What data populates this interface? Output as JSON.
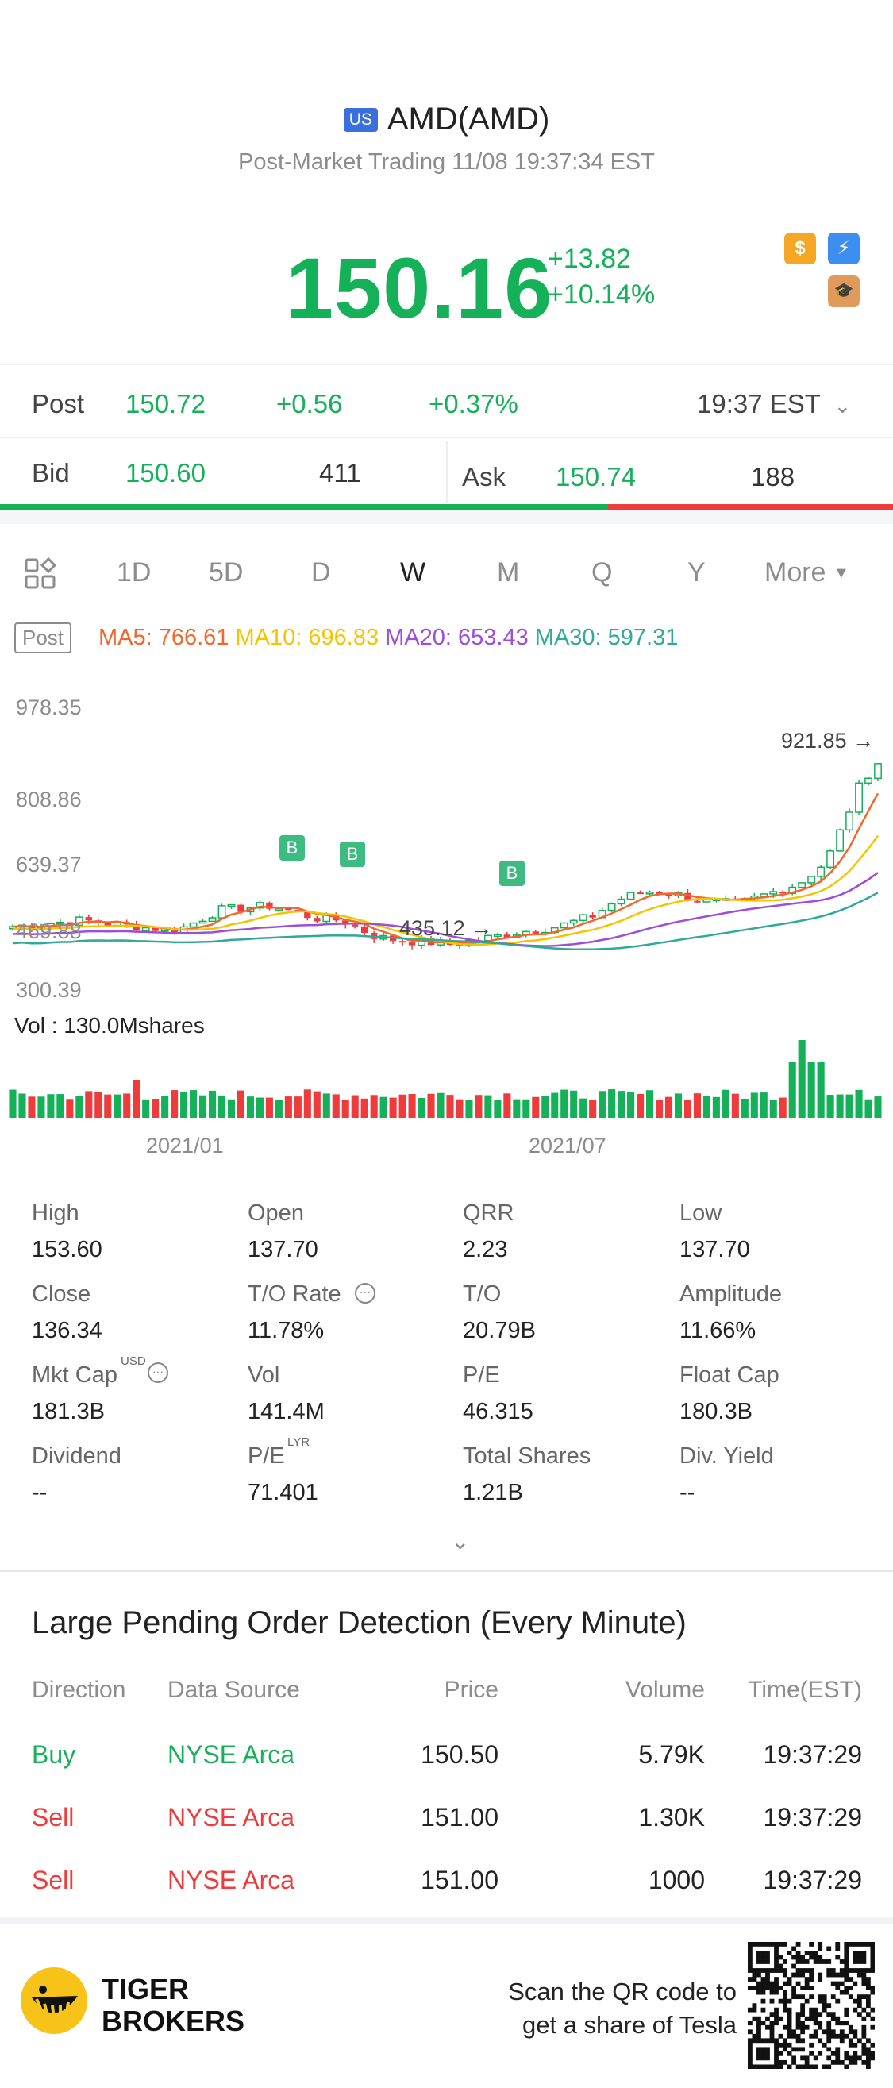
{
  "header": {
    "market_badge": "US",
    "title": "AMD(AMD)",
    "subtitle": "Post-Market Trading 11/08 19:37:34 EST",
    "price": "150.16",
    "change_abs": "+13.82",
    "change_pct": "+10.14%",
    "icons": [
      "dollar-icon",
      "lightning-icon",
      "graduation-cap-icon"
    ]
  },
  "post": {
    "label": "Post",
    "price": "150.72",
    "change_abs": "+0.56",
    "change_pct": "+0.37%",
    "time": "19:37 EST"
  },
  "quote": {
    "bid_label": "Bid",
    "bid_price": "150.60",
    "bid_size": "411",
    "ask_label": "Ask",
    "ask_price": "150.74",
    "ask_size": "188",
    "bid_share": 0.68
  },
  "periods": {
    "tabs": [
      "1D",
      "5D",
      "D",
      "W",
      "M",
      "Q",
      "Y"
    ],
    "more": "More",
    "selected": "W"
  },
  "indicators": {
    "post_tag": "Post",
    "ma5": "MA5: 766.61",
    "ma10": "MA10: 696.83",
    "ma20": "MA20: 653.43",
    "ma30": "MA30: 597.31",
    "colors": {
      "ma5": "#f0682e",
      "ma10": "#f5c400",
      "ma20": "#9c4ddb",
      "ma30": "#2eaa96"
    }
  },
  "chart": {
    "y_ticks": [
      "978.35",
      "808.86",
      "639.37",
      "469.88",
      "300.39"
    ],
    "high_marker": "921.85",
    "low_marker": "435.12",
    "buy_marker": "B",
    "vol_label": "Vol  : 130.0Mshares",
    "x_ticks": [
      "2021/01",
      "2021/07"
    ]
  },
  "chart_data": {
    "type": "candlestick",
    "x_ticks": [
      "2021/01",
      "2021/07"
    ],
    "ylim": [
      300.39,
      978.35
    ],
    "y_ticks": [
      978.35,
      808.86,
      639.37,
      469.88,
      300.39
    ],
    "annotations": [
      {
        "text": "921.85",
        "value": 921.85
      },
      {
        "text": "435.12",
        "value": 435.12
      }
    ],
    "volume_label": "Vol  : 130.0Mshares"
  },
  "stats": [
    {
      "label": "High",
      "value": "153.60"
    },
    {
      "label": "Open",
      "value": "137.70"
    },
    {
      "label": "QRR",
      "value": "2.23"
    },
    {
      "label": "Low",
      "value": "137.70"
    },
    {
      "label": "Close",
      "value": "136.34"
    },
    {
      "label": "T/O Rate",
      "value": "11.78%"
    },
    {
      "label": "T/O",
      "value": "20.79B"
    },
    {
      "label": "Amplitude",
      "value": "11.66%"
    },
    {
      "label": "Mkt Cap",
      "value": "181.3B",
      "sup": "USD"
    },
    {
      "label": "Vol",
      "value": "141.4M"
    },
    {
      "label": "P/E",
      "value": "46.315"
    },
    {
      "label": "Float Cap",
      "value": "180.3B"
    },
    {
      "label": "Dividend",
      "value": "--"
    },
    {
      "label": "P/E",
      "value": "71.401",
      "sup": "LYR"
    },
    {
      "label": "Total Shares",
      "value": "1.21B"
    },
    {
      "label": "Div. Yield",
      "value": "--"
    }
  ],
  "orders": {
    "title": "Large Pending Order Detection (Every Minute)",
    "columns": [
      "Direction",
      "Data Source",
      "Price",
      "Volume",
      "Time(EST)"
    ],
    "rows": [
      {
        "direction": "Buy",
        "source": "NYSE Arca",
        "price": "150.50",
        "volume": "5.79K",
        "time": "19:37:29"
      },
      {
        "direction": "Sell",
        "source": "NYSE Arca",
        "price": "151.00",
        "volume": "1.30K",
        "time": "19:37:29"
      },
      {
        "direction": "Sell",
        "source": "NYSE Arca",
        "price": "151.00",
        "volume": "1000",
        "time": "19:37:29"
      }
    ]
  },
  "footer": {
    "brand_line1": "TIGER",
    "brand_line2": "BROKERS",
    "scan_line1": "Scan the QR code to",
    "scan_line2": "get a share of Tesla"
  }
}
